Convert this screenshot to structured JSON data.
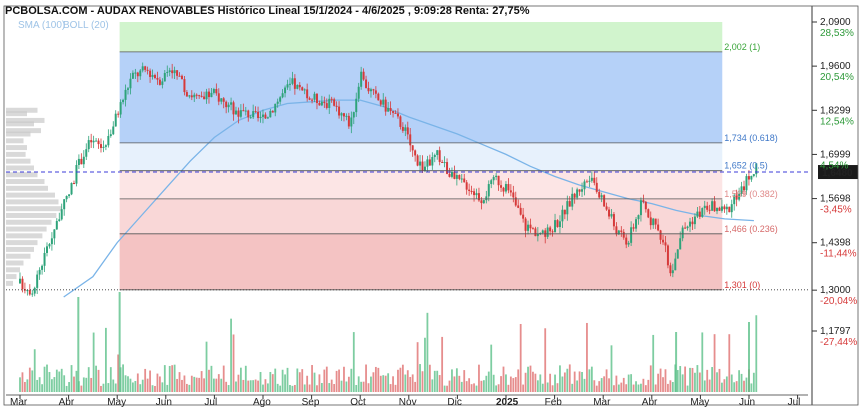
{
  "header": {
    "title": "PCBOLSA.COM - AUDAX RENOVABLES Histórico Lineal 15/1/2024 - 4/6/2025 , 9:09:28 Renta: 27,75%",
    "legend_sma": "SMA (100)",
    "legend_boll": "BOLL (20)"
  },
  "colors": {
    "up_candle": "#2ea37a",
    "down_candle": "#d63a3a",
    "sma": "#7ab4e8",
    "current_price_line": "#3b3bd9",
    "zone_green": "#c9f2c4",
    "zone_blue": "#a8c9f7",
    "zone_light_blue": "#e3eefb",
    "zone_light_red": "#fbe0e0",
    "zone_red": "#f2b9b9",
    "volume_up": "#5cc08a",
    "volume_down": "#e07070"
  },
  "chart_data": {
    "type": "candlestick",
    "title": "PCBOLSA.COM - AUDAX RENOVABLES Histórico Lineal 15/1/2024 - 4/6/2025 , 9:09:28 Renta: 27,75%",
    "ylim": [
      1.0,
      2.09
    ],
    "current_price": "1,6480",
    "current_price_value": 1.648,
    "y_ticks": [
      {
        "value": 2.09,
        "label": "2,0900",
        "pct": "28,53%",
        "pct_color": "#2e9a3a"
      },
      {
        "value": 1.96,
        "label": "1,9600",
        "pct": "20,54%",
        "pct_color": "#2e9a3a"
      },
      {
        "value": 1.8299,
        "label": "1,8299",
        "pct": "12,54%",
        "pct_color": "#2e9a3a"
      },
      {
        "value": 1.6999,
        "label": "1,6999",
        "pct": "4,54%",
        "pct_color": "#2e9a3a"
      },
      {
        "value": 1.5698,
        "label": "1,5698",
        "pct": "-3,45%",
        "pct_color": "#d63a3a"
      },
      {
        "value": 1.4398,
        "label": "1,4398",
        "pct": "-11,44%",
        "pct_color": "#d63a3a"
      },
      {
        "value": 1.3,
        "label": "1,3000",
        "pct": "-20,04%",
        "pct_color": "#d63a3a"
      },
      {
        "value": 1.1797,
        "label": "1,1797",
        "pct": "-27,44%",
        "pct_color": "#d63a3a"
      }
    ],
    "fib_levels": [
      {
        "value": 2.002,
        "label": "2,002 (1)",
        "color": "#3aa63a"
      },
      {
        "value": 1.734,
        "label": "1,734 (0.618)",
        "color": "#3f78c8"
      },
      {
        "value": 1.652,
        "label": "1,652 (0.5)",
        "color": "#3f78c8"
      },
      {
        "value": 1.569,
        "label": "1,569 (0.382)",
        "color": "#e08a8a"
      },
      {
        "value": 1.466,
        "label": "1,466 (0.236)",
        "color": "#d66a6a"
      },
      {
        "value": 1.301,
        "label": "1,301 (0)",
        "color": "#d63a3a"
      }
    ],
    "x_months": [
      "Mar",
      "Abr",
      "May",
      "Jun",
      "Jul",
      "Ago",
      "Sep",
      "Oct",
      "Nov",
      "Dic",
      "2025",
      "Feb",
      "Mar",
      "Abr",
      "May",
      "Jun",
      "Jul"
    ],
    "fib_start_month_index": 2.05,
    "fib_end_month_index": 14.45,
    "close_path": [
      [
        0.0,
        1.32
      ],
      [
        0.25,
        1.3
      ],
      [
        0.5,
        1.4
      ],
      [
        0.75,
        1.5
      ],
      [
        1.0,
        1.58
      ],
      [
        1.2,
        1.67
      ],
      [
        1.45,
        1.74
      ],
      [
        1.7,
        1.72
      ],
      [
        1.9,
        1.78
      ],
      [
        2.05,
        1.84
      ],
      [
        2.3,
        1.93
      ],
      [
        2.6,
        1.95
      ],
      [
        2.9,
        1.92
      ],
      [
        3.1,
        1.96
      ],
      [
        3.4,
        1.89
      ],
      [
        3.7,
        1.86
      ],
      [
        4.0,
        1.88
      ],
      [
        4.4,
        1.83
      ],
      [
        4.7,
        1.82
      ],
      [
        5.0,
        1.8
      ],
      [
        5.3,
        1.86
      ],
      [
        5.6,
        1.91
      ],
      [
        5.9,
        1.87
      ],
      [
        6.2,
        1.86
      ],
      [
        6.5,
        1.84
      ],
      [
        6.8,
        1.79
      ],
      [
        7.0,
        1.93
      ],
      [
        7.3,
        1.87
      ],
      [
        7.6,
        1.83
      ],
      [
        7.9,
        1.78
      ],
      [
        8.1,
        1.7
      ],
      [
        8.3,
        1.66
      ],
      [
        8.6,
        1.7
      ],
      [
        8.9,
        1.63
      ],
      [
        9.2,
        1.61
      ],
      [
        9.5,
        1.57
      ],
      [
        9.8,
        1.63
      ],
      [
        10.1,
        1.58
      ],
      [
        10.4,
        1.49
      ],
      [
        10.8,
        1.46
      ],
      [
        11.1,
        1.51
      ],
      [
        11.4,
        1.58
      ],
      [
        11.7,
        1.63
      ],
      [
        12.0,
        1.56
      ],
      [
        12.3,
        1.47
      ],
      [
        12.5,
        1.44
      ],
      [
        12.8,
        1.56
      ],
      [
        13.0,
        1.5
      ],
      [
        13.2,
        1.46
      ],
      [
        13.4,
        1.35
      ],
      [
        13.6,
        1.47
      ],
      [
        13.9,
        1.52
      ],
      [
        14.2,
        1.55
      ],
      [
        14.5,
        1.53
      ],
      [
        14.8,
        1.58
      ],
      [
        15.0,
        1.64
      ],
      [
        15.15,
        1.66
      ]
    ],
    "sma_path": [
      [
        0.9,
        1.28
      ],
      [
        1.5,
        1.34
      ],
      [
        2.0,
        1.44
      ],
      [
        2.5,
        1.52
      ],
      [
        3.0,
        1.6
      ],
      [
        3.5,
        1.68
      ],
      [
        4.0,
        1.75
      ],
      [
        4.5,
        1.8
      ],
      [
        5.0,
        1.83
      ],
      [
        5.5,
        1.85
      ],
      [
        6.0,
        1.855
      ],
      [
        6.5,
        1.86
      ],
      [
        7.0,
        1.86
      ],
      [
        7.5,
        1.84
      ],
      [
        8.0,
        1.81
      ],
      [
        8.5,
        1.785
      ],
      [
        9.0,
        1.76
      ],
      [
        9.5,
        1.73
      ],
      [
        10.0,
        1.7
      ],
      [
        10.5,
        1.665
      ],
      [
        11.0,
        1.635
      ],
      [
        11.5,
        1.61
      ],
      [
        12.0,
        1.59
      ],
      [
        12.5,
        1.57
      ],
      [
        13.0,
        1.555
      ],
      [
        13.5,
        1.535
      ],
      [
        14.0,
        1.52
      ],
      [
        14.5,
        1.51
      ],
      [
        15.1,
        1.505
      ]
    ]
  }
}
